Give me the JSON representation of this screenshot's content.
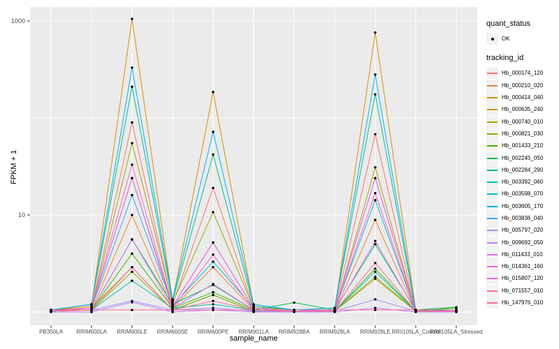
{
  "figure": {
    "background": "#FFFFFF",
    "panel_background": "#EBEBEB",
    "grid_color": "#FFFFFF",
    "point_color": "#000000",
    "tick_color": "#333333",
    "tick_label_color": "#4D4D4D"
  },
  "chart_data": {
    "type": "line",
    "title": "",
    "xlabel": "sample_name",
    "ylabel": "FPKM + 1",
    "y_scale": "log10",
    "ylim": [
      0.75,
      1500
    ],
    "grid": true,
    "legend_position": "right",
    "y_ticks": [
      {
        "value": 1000,
        "label": "1000"
      },
      {
        "value": 10,
        "label": "10"
      }
    ],
    "y_gridlines": [
      1,
      10,
      100,
      1000
    ],
    "categories": [
      "PB350LA",
      "RRIM600LA",
      "RRIM600LE",
      "RRIM600SE",
      "RRIM600PE",
      "RRIM901LA",
      "RRIM928BA",
      "RRIM928LA",
      "RRIM928LE",
      "RRII105LA_Control",
      "RRII105LA_Stressed"
    ],
    "point_shape": "filled-circle",
    "series": [
      {
        "name": "Hb_000174_120",
        "color": "#F8766D",
        "values": [
          1.05,
          1.1,
          90,
          1.2,
          19,
          1.1,
          1.02,
          1.05,
          68,
          1.02,
          1.02
        ]
      },
      {
        "name": "Hb_000210_020",
        "color": "#EA8331",
        "values": [
          1.02,
          1.05,
          10,
          1.1,
          2.9,
          1.05,
          1.02,
          1.02,
          8.9,
          1.02,
          1.02
        ]
      },
      {
        "name": "Hb_000414_040",
        "color": "#D89000",
        "values": [
          1.05,
          1.15,
          1050,
          1.3,
          185,
          1.15,
          1.02,
          1.05,
          760,
          1.05,
          1.02
        ]
      },
      {
        "name": "Hb_000635_240",
        "color": "#C09B00",
        "values": [
          1.02,
          1.1,
          2.9,
          1.05,
          1.5,
          1.02,
          1.02,
          1.02,
          2.2,
          1.02,
          1.02
        ]
      },
      {
        "name": "Hb_000740_010",
        "color": "#A3A500",
        "values": [
          1.02,
          1.1,
          55,
          1.25,
          10.7,
          1.1,
          1.02,
          1.02,
          31,
          1.02,
          1.02
        ]
      },
      {
        "name": "Hb_000821_030",
        "color": "#7CAE00",
        "values": [
          1.02,
          1.05,
          2.6,
          1.05,
          1.5,
          1.02,
          1.02,
          1.02,
          2.3,
          1.02,
          1.02
        ]
      },
      {
        "name": "Hb_001433_210",
        "color": "#39B600",
        "values": [
          1.02,
          1.05,
          4,
          1.1,
          1.6,
          1.05,
          1.02,
          1.02,
          2.8,
          1.02,
          1.1
        ]
      },
      {
        "name": "Hb_002245_050",
        "color": "#00BB4E",
        "values": [
          1.02,
          1.05,
          5.6,
          1.2,
          1.9,
          1.05,
          1.25,
          1.05,
          5,
          1.05,
          1.12
        ]
      },
      {
        "name": "Hb_002284_290",
        "color": "#00C087",
        "values": [
          1.05,
          1.2,
          210,
          1.3,
          42,
          1.15,
          1.05,
          1.1,
          175,
          1.05,
          1.05
        ]
      },
      {
        "name": "Hb_003392_060",
        "color": "#00C0AF",
        "values": [
          1.02,
          1.05,
          2.1,
          1.1,
          1.2,
          1.05,
          1.02,
          1.02,
          2.6,
          1.02,
          1.05
        ]
      },
      {
        "name": "Hb_003598_070",
        "color": "#00BCD8",
        "values": [
          1.02,
          1.1,
          24,
          1.15,
          3.3,
          1.1,
          1.02,
          1.05,
          14.2,
          1.02,
          1.02
        ]
      },
      {
        "name": "Hb_003605_170",
        "color": "#00B0F6",
        "values": [
          1.05,
          1.2,
          330,
          1.35,
          72,
          1.2,
          1.05,
          1.1,
          280,
          1.05,
          1.05
        ]
      },
      {
        "name": "Hb_003836_040",
        "color": "#35A2FF",
        "values": [
          1.02,
          1.1,
          16,
          1.15,
          5.2,
          1.1,
          1.02,
          1.05,
          24,
          1.02,
          1.02
        ]
      },
      {
        "name": "Hb_005797_020",
        "color": "#9590FF",
        "values": [
          1.02,
          1.05,
          1.3,
          1.05,
          1.1,
          1.02,
          1.02,
          1.02,
          1.35,
          1.02,
          1.02
        ]
      },
      {
        "name": "Hb_009692_050",
        "color": "#C77CFF",
        "values": [
          1,
          1,
          1.26,
          1,
          1.05,
          1,
          1,
          1,
          1.1,
          1,
          1
        ]
      },
      {
        "name": "Hb_011433_010",
        "color": "#E76BF3",
        "values": [
          1.02,
          1.05,
          5.6,
          1.1,
          1.94,
          1.05,
          1.02,
          1.02,
          5.4,
          1.02,
          1.02
        ]
      },
      {
        "name": "Hb_014361_160",
        "color": "#FA62DB",
        "values": [
          1.02,
          1.1,
          33,
          1.15,
          5.2,
          1.1,
          1.02,
          1.05,
          24,
          1.02,
          1.02
        ]
      },
      {
        "name": "Hb_015807_120",
        "color": "#FF62BC",
        "values": [
          1.02,
          1.1,
          24,
          1.1,
          3.9,
          1.05,
          1.02,
          1.05,
          16.8,
          1.02,
          1.02
        ]
      },
      {
        "name": "Hb_071557_010",
        "color": "#FF6A98",
        "values": [
          1.05,
          1.05,
          1.05,
          1.05,
          1.05,
          1.05,
          1.05,
          1.05,
          1.05,
          1.05,
          1.05
        ]
      },
      {
        "name": "Hb_147976_010",
        "color": "#FF6C91",
        "values": [
          1.02,
          1.05,
          2.9,
          1.05,
          1.3,
          1.05,
          1.02,
          1.02,
          3.2,
          1.02,
          1.02
        ]
      }
    ],
    "legend": {
      "quant_status_title": "quant_status",
      "quant_status_items": [
        {
          "label": "OK"
        }
      ],
      "tracking_id_title": "tracking_id"
    }
  }
}
